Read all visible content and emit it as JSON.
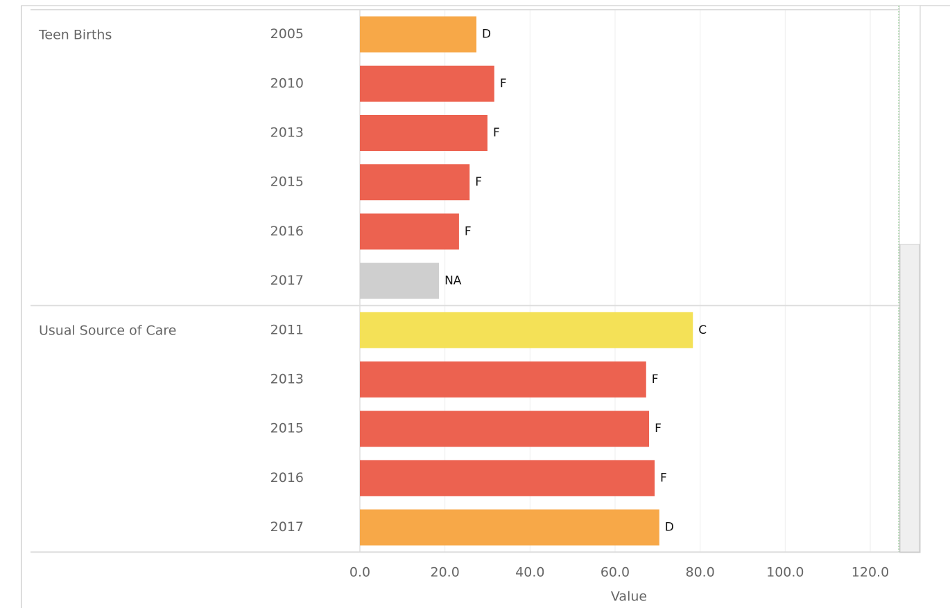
{
  "chart_data": {
    "type": "bar",
    "orientation": "horizontal",
    "x_label": "Value",
    "xlim": [
      0,
      126.5
    ],
    "xticks": [
      {
        "value": 0,
        "label": "0.0"
      },
      {
        "value": 20,
        "label": "20.0"
      },
      {
        "value": 40,
        "label": "40.0"
      },
      {
        "value": 60,
        "label": "60.0"
      },
      {
        "value": 80,
        "label": "80.0"
      },
      {
        "value": 100,
        "label": "100.0"
      },
      {
        "value": 120,
        "label": "120.0"
      }
    ],
    "grid": true,
    "groups": [
      {
        "name": "Teen Births",
        "categories": [
          "2005",
          "2010",
          "2013",
          "2015",
          "2016",
          "2017"
        ],
        "values": [
          27.4,
          31.6,
          30.0,
          25.8,
          23.3,
          18.6
        ],
        "labels": [
          "D",
          "F",
          "F",
          "F",
          "F",
          "NA"
        ],
        "colors": [
          "#f7a848",
          "#ec6250",
          "#ec6250",
          "#ec6250",
          "#ec6250",
          "#cfcfcf"
        ]
      },
      {
        "name": "Usual Source of Care",
        "categories": [
          "2011",
          "2013",
          "2015",
          "2016",
          "2017"
        ],
        "values": [
          78.3,
          67.3,
          68.0,
          69.3,
          70.4
        ],
        "labels": [
          "C",
          "F",
          "F",
          "F",
          "D"
        ],
        "colors": [
          "#f4e157",
          "#ec6250",
          "#ec6250",
          "#ec6250",
          "#f7a848"
        ]
      }
    ]
  }
}
